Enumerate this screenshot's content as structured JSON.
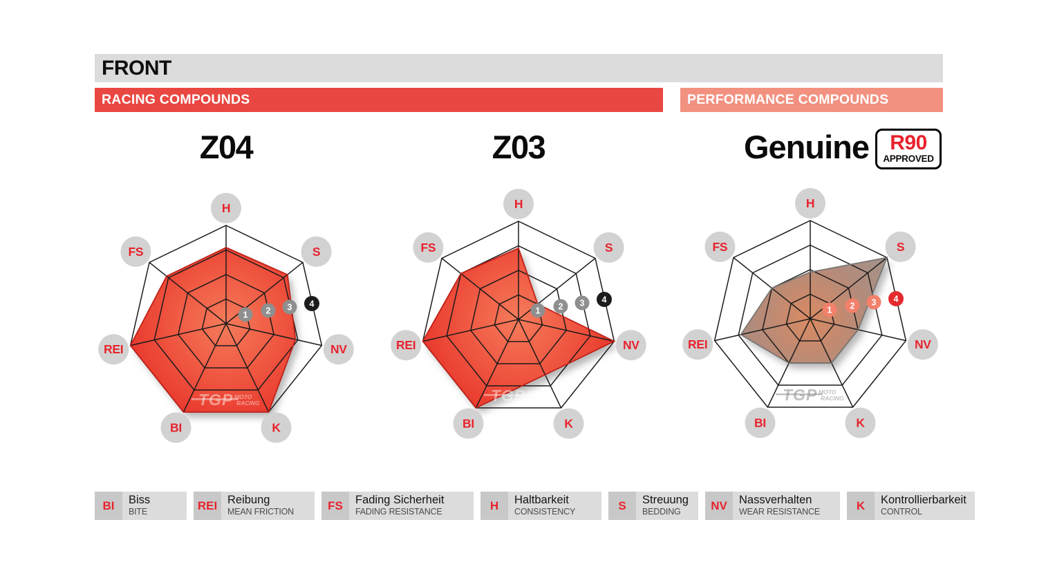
{
  "header": {
    "title": "FRONT",
    "title_bar_color": "#dcdcdc",
    "bands": [
      {
        "label": "RACING COMPOUNDS",
        "color": "#e94741"
      },
      {
        "label": "PERFORMANCE COMPOUNDS",
        "color": "#f29180"
      }
    ]
  },
  "chart_data": {
    "type": "radar",
    "axes": [
      "H",
      "S",
      "NV",
      "K",
      "BI",
      "REI",
      "FS"
    ],
    "scale": {
      "min": 0,
      "max": 4,
      "rings": 4,
      "ring_labels": [
        "1",
        "2",
        "3",
        "4"
      ]
    },
    "grid": true,
    "series": [
      {
        "name": "Z04",
        "group": "RACING COMPOUNDS",
        "values": [
          3.1,
          3.2,
          2.9,
          4.0,
          4.0,
          4.0,
          3.1
        ]
      },
      {
        "name": "Z03",
        "group": "RACING COMPOUNDS",
        "values": [
          2.9,
          1.0,
          4.0,
          2.5,
          4.0,
          4.0,
          3.0
        ]
      },
      {
        "name": "Genuine",
        "group": "PERFORMANCE COMPOUNDS",
        "badge": {
          "line1": "R90",
          "line2": "APPROVED"
        },
        "values": [
          1.9,
          4.0,
          2.0,
          2.0,
          2.0,
          2.9,
          2.0
        ]
      }
    ]
  },
  "chart_styles": {
    "grid_color": "#1b1b1b",
    "axis_label_circle": "#d2d2d2",
    "axis_label_text": "#e8232d",
    "racing": {
      "gradient": [
        "#f57b5b",
        "#ef5540",
        "#e73229"
      ],
      "stroke": "#bf2118",
      "markers": [
        "#8f8f8f",
        "#8f8f8f",
        "#8f8f8f",
        "#1c1c1c"
      ],
      "watermark": "rgba(255,255,255,0.45)"
    },
    "performance": {
      "gradient": [
        "#d98a62",
        "#b28b7b",
        "#9e9690"
      ],
      "stroke": "#7a7672",
      "markers": [
        "#f2806a",
        "#f2806a",
        "#f2806a",
        "#e42a2d"
      ],
      "watermark": "rgba(130,130,130,0.5)"
    }
  },
  "watermark": {
    "tgp": "TGP",
    "line1": "MOTO",
    "line2": "RACING"
  },
  "legend": {
    "items": [
      {
        "abbr": "BI",
        "de": "Biss",
        "en": "BITE"
      },
      {
        "abbr": "REI",
        "de": "Reibung",
        "en": "MEAN FRICTION"
      },
      {
        "abbr": "FS",
        "de": "Fading Sicherheit",
        "en": "FADING RESISTANCE"
      },
      {
        "abbr": "H",
        "de": "Haltbarkeit",
        "en": "CONSISTENCY"
      },
      {
        "abbr": "S",
        "de": "Streuung",
        "en": "BEDDING"
      },
      {
        "abbr": "NV",
        "de": "Nassverhalten",
        "en": "WEAR RESISTANCE"
      },
      {
        "abbr": "K",
        "de": "Kontrollierbarkeit",
        "en": "CONTROL"
      }
    ]
  }
}
